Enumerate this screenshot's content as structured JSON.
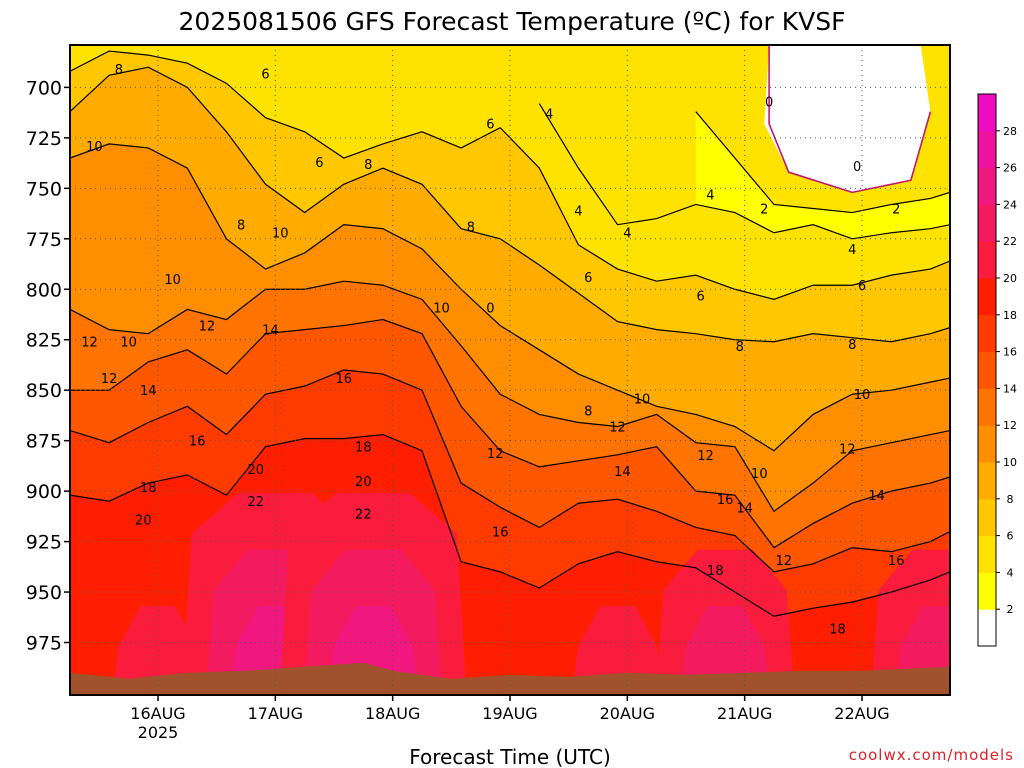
{
  "chart_data": {
    "type": "heatmap",
    "title": "2025081506 GFS Forecast Temperature (ºC) for KVSF",
    "xlabel": "Forecast Time (UTC)",
    "ylabel": "",
    "credit": "coolwx.com/models",
    "x_ticks": [
      {
        "hour": 18,
        "label": "16AUG",
        "sublabel": "2025"
      },
      {
        "hour": 42,
        "label": "17AUG",
        "sublabel": ""
      },
      {
        "hour": 66,
        "label": "18AUG",
        "sublabel": ""
      },
      {
        "hour": 90,
        "label": "19AUG",
        "sublabel": ""
      },
      {
        "hour": 114,
        "label": "20AUG",
        "sublabel": ""
      },
      {
        "hour": 138,
        "label": "21AUG",
        "sublabel": ""
      },
      {
        "hour": 162,
        "label": "22AUG",
        "sublabel": ""
      }
    ],
    "xlim_hours": [
      0,
      180
    ],
    "y_ticks": [
      700,
      725,
      750,
      775,
      800,
      825,
      850,
      875,
      900,
      925,
      950,
      975
    ],
    "ylim_hPa": [
      679,
      1001
    ],
    "grid": true,
    "colorbar": {
      "levels": [
        2,
        4,
        6,
        8,
        10,
        12,
        14,
        16,
        18,
        20,
        22,
        24,
        26,
        28
      ],
      "colors": [
        "#ffffff",
        "#ffff00",
        "#ffe300",
        "#ffc700",
        "#ffab00",
        "#ff8f00",
        "#ff7300",
        "#ff5700",
        "#ff3b00",
        "#ff1f00",
        "#fa1c3c",
        "#f41a5f",
        "#f0187f",
        "#f0119f",
        "#f00ac0"
      ]
    },
    "ground_color": "#a0522d",
    "ground_top_hPa_by_hour": [
      [
        0,
        990
      ],
      [
        12,
        993
      ],
      [
        24,
        990
      ],
      [
        36,
        989
      ],
      [
        48,
        987
      ],
      [
        60,
        985
      ],
      [
        66,
        989
      ],
      [
        78,
        993
      ],
      [
        90,
        991
      ],
      [
        102,
        992
      ],
      [
        114,
        990
      ],
      [
        126,
        991
      ],
      [
        138,
        990
      ],
      [
        150,
        989
      ],
      [
        162,
        989
      ],
      [
        180,
        987
      ]
    ],
    "contour_labels": [
      {
        "hour": 10,
        "p": 691,
        "v": "8"
      },
      {
        "hour": 40,
        "p": 693,
        "v": "6"
      },
      {
        "hour": 98,
        "p": 713,
        "v": "4"
      },
      {
        "hour": 86,
        "p": 718,
        "v": "6"
      },
      {
        "hour": 5,
        "p": 729,
        "v": "10"
      },
      {
        "hour": 51,
        "p": 737,
        "v": "6"
      },
      {
        "hour": 61,
        "p": 738,
        "v": "8"
      },
      {
        "hour": 143,
        "p": 707,
        "v": "0"
      },
      {
        "hour": 161,
        "p": 739,
        "v": "0"
      },
      {
        "hour": 104,
        "p": 761,
        "v": "4"
      },
      {
        "hour": 114,
        "p": 772,
        "v": "4"
      },
      {
        "hour": 131,
        "p": 753,
        "v": "4"
      },
      {
        "hour": 142,
        "p": 760,
        "v": "2"
      },
      {
        "hour": 169,
        "p": 760,
        "v": "2"
      },
      {
        "hour": 35,
        "p": 768,
        "v": "8"
      },
      {
        "hour": 43,
        "p": 772,
        "v": "10"
      },
      {
        "hour": 82,
        "p": 769,
        "v": "8"
      },
      {
        "hour": 160,
        "p": 780,
        "v": "4"
      },
      {
        "hour": 106,
        "p": 794,
        "v": "6"
      },
      {
        "hour": 129,
        "p": 803,
        "v": "6"
      },
      {
        "hour": 162,
        "p": 798,
        "v": "6"
      },
      {
        "hour": 21,
        "p": 795,
        "v": "10"
      },
      {
        "hour": 76,
        "p": 809,
        "v": "10"
      },
      {
        "hour": 86,
        "p": 809,
        "v": "0"
      },
      {
        "hour": 28,
        "p": 818,
        "v": "12"
      },
      {
        "hour": 41,
        "p": 820,
        "v": "14"
      },
      {
        "hour": 4,
        "p": 826,
        "v": "12"
      },
      {
        "hour": 12,
        "p": 826,
        "v": "10"
      },
      {
        "hour": 137,
        "p": 828,
        "v": "8"
      },
      {
        "hour": 160,
        "p": 827,
        "v": "8"
      },
      {
        "hour": 8,
        "p": 844,
        "v": "12"
      },
      {
        "hour": 16,
        "p": 850,
        "v": "14"
      },
      {
        "hour": 56,
        "p": 844,
        "v": "16"
      },
      {
        "hour": 106,
        "p": 860,
        "v": "8"
      },
      {
        "hour": 117,
        "p": 854,
        "v": "10"
      },
      {
        "hour": 162,
        "p": 852,
        "v": "10"
      },
      {
        "hour": 112,
        "p": 868,
        "v": "12"
      },
      {
        "hour": 26,
        "p": 875,
        "v": "16"
      },
      {
        "hour": 60,
        "p": 878,
        "v": "18"
      },
      {
        "hour": 87,
        "p": 881,
        "v": "12"
      },
      {
        "hour": 130,
        "p": 882,
        "v": "12"
      },
      {
        "hour": 159,
        "p": 879,
        "v": "12"
      },
      {
        "hour": 38,
        "p": 889,
        "v": "20"
      },
      {
        "hour": 60,
        "p": 895,
        "v": "20"
      },
      {
        "hour": 113,
        "p": 890,
        "v": "14"
      },
      {
        "hour": 141,
        "p": 891,
        "v": "10"
      },
      {
        "hour": 16,
        "p": 898,
        "v": "18"
      },
      {
        "hour": 38,
        "p": 905,
        "v": "22"
      },
      {
        "hour": 60,
        "p": 911,
        "v": "22"
      },
      {
        "hour": 134,
        "p": 904,
        "v": "16"
      },
      {
        "hour": 138,
        "p": 908,
        "v": "14"
      },
      {
        "hour": 165,
        "p": 902,
        "v": "14"
      },
      {
        "hour": 15,
        "p": 914,
        "v": "20"
      },
      {
        "hour": 88,
        "p": 920,
        "v": "16"
      },
      {
        "hour": 146,
        "p": 934,
        "v": "12"
      },
      {
        "hour": 169,
        "p": 934,
        "v": "16"
      },
      {
        "hour": 132,
        "p": 939,
        "v": "18"
      },
      {
        "hour": 157,
        "p": 968,
        "v": "18"
      }
    ],
    "contour_lines": {
      "hours": [
        0,
        8,
        16,
        24,
        32,
        40,
        48,
        56,
        64,
        72,
        80,
        88,
        96,
        104,
        112,
        120,
        128,
        136,
        144,
        152,
        160,
        168,
        176,
        180
      ],
      "isotherms": [
        {
          "v": 2,
          "p": [
            null,
            null,
            null,
            null,
            null,
            null,
            null,
            null,
            null,
            null,
            null,
            null,
            null,
            null,
            null,
            null,
            712,
            735,
            758,
            760,
            762,
            758,
            755,
            752
          ]
        },
        {
          "v": 4,
          "p": [
            null,
            null,
            null,
            null,
            null,
            null,
            null,
            null,
            null,
            null,
            null,
            null,
            708,
            740,
            768,
            765,
            758,
            762,
            772,
            768,
            775,
            772,
            770,
            768
          ]
        },
        {
          "v": 6,
          "p": [
            692,
            682,
            684,
            688,
            698,
            715,
            722,
            735,
            728,
            722,
            730,
            720,
            740,
            778,
            790,
            796,
            793,
            800,
            805,
            798,
            798,
            793,
            790,
            786
          ]
        },
        {
          "v": 8,
          "p": [
            712,
            694,
            690,
            700,
            722,
            748,
            762,
            748,
            740,
            748,
            770,
            775,
            788,
            802,
            816,
            820,
            822,
            825,
            826,
            822,
            824,
            826,
            822,
            819
          ]
        },
        {
          "v": 10,
          "p": [
            735,
            728,
            730,
            740,
            775,
            790,
            782,
            768,
            770,
            780,
            800,
            818,
            830,
            842,
            850,
            858,
            862,
            868,
            880,
            862,
            852,
            850,
            846,
            844
          ]
        },
        {
          "v": 12,
          "p": [
            810,
            820,
            822,
            810,
            815,
            800,
            800,
            796,
            798,
            805,
            828,
            852,
            862,
            866,
            868,
            862,
            876,
            878,
            910,
            896,
            880,
            876,
            872,
            870
          ]
        },
        {
          "v": 14,
          "p": [
            850,
            850,
            836,
            830,
            842,
            822,
            820,
            818,
            815,
            822,
            858,
            880,
            888,
            885,
            882,
            878,
            900,
            902,
            928,
            916,
            906,
            900,
            896,
            893
          ]
        },
        {
          "v": 16,
          "p": [
            870,
            876,
            866,
            858,
            872,
            852,
            848,
            840,
            842,
            850,
            896,
            908,
            918,
            906,
            904,
            910,
            918,
            922,
            940,
            936,
            928,
            930,
            925,
            920
          ]
        },
        {
          "v": 18,
          "p": [
            902,
            905,
            896,
            892,
            902,
            878,
            874,
            874,
            872,
            880,
            935,
            940,
            948,
            936,
            930,
            935,
            938,
            950,
            962,
            958,
            955,
            950,
            944,
            940
          ]
        }
      ]
    }
  }
}
